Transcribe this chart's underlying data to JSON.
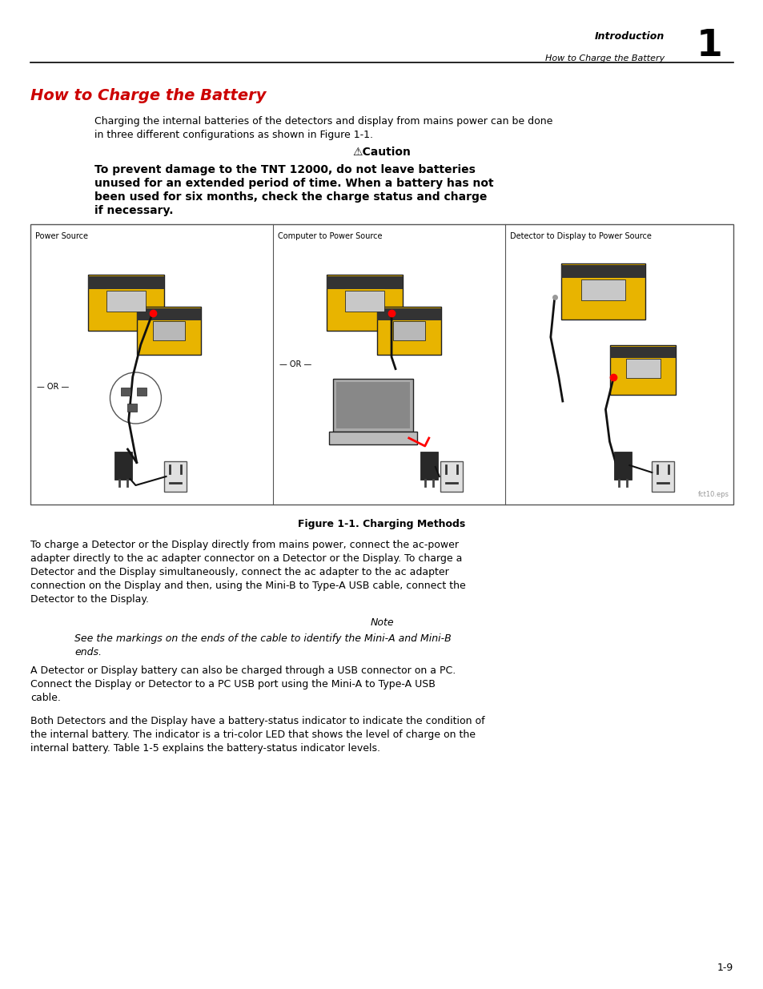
{
  "page_bg": "#ffffff",
  "header_right_text1": "Introduction",
  "header_right_text2": "How to Charge the Battery",
  "header_chapter_num": "1",
  "section_title": "How to Charge the Battery",
  "section_title_color": "#cc0000",
  "para1_line1": "Charging the internal batteries of the detectors and display from mains power can be done",
  "para1_line2": "in three different configurations as shown in Figure 1-1.",
  "caution_label": "⚠Caution",
  "caution_line1": "To prevent damage to the TNT 12000, do not leave batteries",
  "caution_line2": "unused for an extended period of time. When a battery has not",
  "caution_line3": "been used for six months, check the charge status and charge",
  "caution_line4": "if necessary.",
  "figure_label1": "Power Source",
  "figure_label2": "Computer to Power Source",
  "figure_label3": "Detector to Display to Power Source",
  "figure_caption": "Figure 1-1. Charging Methods",
  "figure_watermark": "fct10.eps",
  "or_label": "— OR —",
  "para2_line1": "To charge a Detector or the Display directly from mains power, connect the ac-power",
  "para2_line2": "adapter directly to the ac adapter connector on a Detector or the Display. To charge a",
  "para2_line3": "Detector and the Display simultaneously, connect the ac adapter to the ac adapter",
  "para2_line4": "connection on the Display and then, using the Mini-B to Type-A USB cable, connect the",
  "para2_line5": "Detector to the Display.",
  "note_label": "Note",
  "note_line1": "See the markings on the ends of the cable to identify the Mini-A and Mini-B",
  "note_line2": "ends.",
  "para3_line1": "A Detector or Display battery can also be charged through a USB connector on a PC.",
  "para3_line2": "Connect the Display or Detector to a PC USB port using the Mini-A to Type-A USB",
  "para3_line3": "cable.",
  "para4_line1": "Both Detectors and the Display have a battery-status indicator to indicate the condition of",
  "para4_line2": "the internal battery. The indicator is a tri-color LED that shows the level of charge on the",
  "para4_line3": "internal battery. Table 1-5 explains the battery-status indicator levels.",
  "footer_text": "1-9",
  "yellow_device": "#E8B400",
  "dark_gray": "#404040",
  "light_gray": "#aaaaaa",
  "medium_gray": "#888888"
}
